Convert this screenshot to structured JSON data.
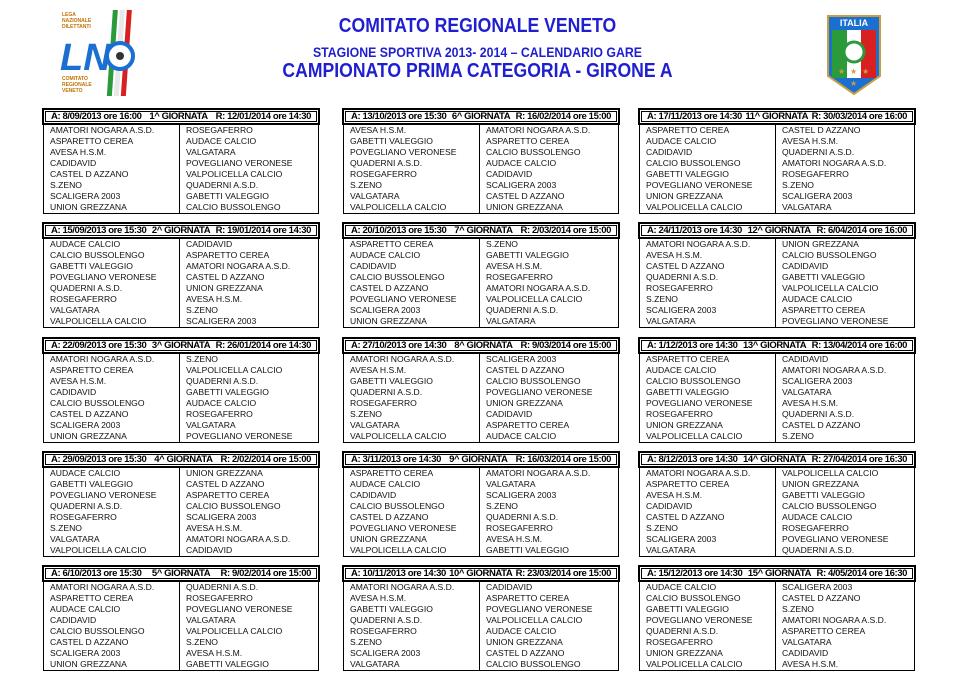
{
  "header": {
    "title": "COMITATO REGIONALE VENETO",
    "subtitle": "STAGIONE SPORTIVA   2013- 2014 – CALENDARIO GARE",
    "championship": "CAMPIONATO PRIMA CATEGORIA  -  GIRONE  A",
    "left_logo_text": "LND - LEGA NAZIONALE DILETTANTI - COMITATO REGIONALE VENETO",
    "right_logo_text": "ITALIA FIGC",
    "accent_color": "#1f1fd0"
  },
  "rounds": [
    {
      "andata": "A: 8/09/2013 ore 16:00",
      "label": "1^ GIORNATA",
      "ritorno": "R: 12/01/2014 ore 14:30",
      "home": [
        "AMATORI NOGARA A.S.D.",
        "ASPARETTO CEREA",
        "AVESA H.S.M.",
        "CADIDAVID",
        "CASTEL D AZZANO",
        "S.ZENO",
        "SCALIGERA 2003",
        "UNION GREZZANA"
      ],
      "away": [
        "ROSEGAFERRO",
        "AUDACE CALCIO",
        "VALGATARA",
        "POVEGLIANO VERONESE",
        "VALPOLICELLA CALCIO",
        "QUADERNI A.S.D.",
        "GABETTI VALEGGIO",
        "CALCIO BUSSOLENGO"
      ]
    },
    {
      "andata": "A: 15/09/2013 ore 15:30",
      "label": "2^ GIORNATA",
      "ritorno": "R: 19/01/2014 ore 14:30",
      "home": [
        "AUDACE CALCIO",
        "CALCIO BUSSOLENGO",
        "GABETTI VALEGGIO",
        "POVEGLIANO VERONESE",
        "QUADERNI A.S.D.",
        "ROSEGAFERRO",
        "VALGATARA",
        "VALPOLICELLA CALCIO"
      ],
      "away": [
        "CADIDAVID",
        "ASPARETTO CEREA",
        "AMATORI NOGARA A.S.D.",
        "CASTEL D AZZANO",
        "UNION GREZZANA",
        "AVESA H.S.M.",
        "S.ZENO",
        "SCALIGERA 2003"
      ]
    },
    {
      "andata": "A: 22/09/2013 ore 15:30",
      "label": "3^ GIORNATA",
      "ritorno": "R: 26/01/2014 ore 14:30",
      "home": [
        "AMATORI NOGARA A.S.D.",
        "ASPARETTO CEREA",
        "AVESA H.S.M.",
        "CADIDAVID",
        "CALCIO BUSSOLENGO",
        "CASTEL D AZZANO",
        "SCALIGERA 2003",
        "UNION GREZZANA"
      ],
      "away": [
        "S.ZENO",
        "VALPOLICELLA CALCIO",
        "QUADERNI A.S.D.",
        "GABETTI VALEGGIO",
        "AUDACE CALCIO",
        "ROSEGAFERRO",
        "VALGATARA",
        "POVEGLIANO VERONESE"
      ]
    },
    {
      "andata": "A: 29/09/2013 ore 15:30",
      "label": "4^ GIORNATA",
      "ritorno": "R: 2/02/2014 ore 15:00",
      "home": [
        "AUDACE CALCIO",
        "GABETTI VALEGGIO",
        "POVEGLIANO VERONESE",
        "QUADERNI A.S.D.",
        "ROSEGAFERRO",
        "S.ZENO",
        "VALGATARA",
        "VALPOLICELLA CALCIO"
      ],
      "away": [
        "UNION GREZZANA",
        "CASTEL D AZZANO",
        "ASPARETTO CEREA",
        "CALCIO BUSSOLENGO",
        "SCALIGERA 2003",
        "AVESA H.S.M.",
        "AMATORI NOGARA A.S.D.",
        "CADIDAVID"
      ]
    },
    {
      "andata": "A: 6/10/2013 ore 15:30",
      "label": "5^ GIORNATA",
      "ritorno": "R: 9/02/2014 ore 15:00",
      "home": [
        "AMATORI NOGARA A.S.D.",
        "ASPARETTO CEREA",
        "AUDACE CALCIO",
        "CADIDAVID",
        "CALCIO BUSSOLENGO",
        "CASTEL D AZZANO",
        "SCALIGERA 2003",
        "UNION GREZZANA"
      ],
      "away": [
        "QUADERNI A.S.D.",
        "ROSEGAFERRO",
        "POVEGLIANO VERONESE",
        "VALGATARA",
        "VALPOLICELLA CALCIO",
        "S.ZENO",
        "AVESA H.S.M.",
        "GABETTI VALEGGIO"
      ]
    },
    {
      "andata": "A: 13/10/2013 ore 15:30",
      "label": "6^ GIORNATA",
      "ritorno": "R: 16/02/2014 ore 15:00",
      "home": [
        "AVESA H.S.M.",
        "GABETTI VALEGGIO",
        "POVEGLIANO VERONESE",
        "QUADERNI A.S.D.",
        "ROSEGAFERRO",
        "S.ZENO",
        "VALGATARA",
        "VALPOLICELLA CALCIO"
      ],
      "away": [
        "AMATORI NOGARA A.S.D.",
        "ASPARETTO CEREA",
        "CALCIO BUSSOLENGO",
        "AUDACE CALCIO",
        "CADIDAVID",
        "SCALIGERA 2003",
        "CASTEL D AZZANO",
        "UNION GREZZANA"
      ]
    },
    {
      "andata": "A: 20/10/2013 ore 15:30",
      "label": "7^ GIORNATA",
      "ritorno": "R: 2/03/2014 ore 15:00",
      "home": [
        "ASPARETTO CEREA",
        "AUDACE CALCIO",
        "CADIDAVID",
        "CALCIO BUSSOLENGO",
        "CASTEL D AZZANO",
        "POVEGLIANO VERONESE",
        "SCALIGERA 2003",
        "UNION GREZZANA"
      ],
      "away": [
        "S.ZENO",
        "GABETTI VALEGGIO",
        "AVESA H.S.M.",
        "ROSEGAFERRO",
        "AMATORI NOGARA A.S.D.",
        "VALPOLICELLA CALCIO",
        "QUADERNI A.S.D.",
        "VALGATARA"
      ]
    },
    {
      "andata": "A: 27/10/2013 ore 14:30",
      "label": "8^ GIORNATA",
      "ritorno": "R: 9/03/2014 ore 15:00",
      "home": [
        "AMATORI NOGARA A.S.D.",
        "AVESA H.S.M.",
        "GABETTI VALEGGIO",
        "QUADERNI A.S.D.",
        "ROSEGAFERRO",
        "S.ZENO",
        "VALGATARA",
        "VALPOLICELLA CALCIO"
      ],
      "away": [
        "SCALIGERA 2003",
        "CASTEL D AZZANO",
        "CALCIO BUSSOLENGO",
        "POVEGLIANO VERONESE",
        "UNION GREZZANA",
        "CADIDAVID",
        "ASPARETTO CEREA",
        "AUDACE CALCIO"
      ]
    },
    {
      "andata": "A: 3/11/2013 ore 14:30",
      "label": "9^ GIORNATA",
      "ritorno": "R: 16/03/2014 ore 15:00",
      "home": [
        "ASPARETTO CEREA",
        "AUDACE CALCIO",
        "CADIDAVID",
        "CALCIO BUSSOLENGO",
        "CASTEL D AZZANO",
        "POVEGLIANO VERONESE",
        "UNION GREZZANA",
        "VALPOLICELLA CALCIO"
      ],
      "away": [
        "AMATORI NOGARA A.S.D.",
        "VALGATARA",
        "SCALIGERA 2003",
        "S.ZENO",
        "QUADERNI A.S.D.",
        "ROSEGAFERRO",
        "AVESA H.S.M.",
        "GABETTI VALEGGIO"
      ]
    },
    {
      "andata": "A: 10/11/2013 ore 14:30",
      "label": "10^ GIORNATA",
      "ritorno": "R: 23/03/2014 ore 15:00",
      "home": [
        "AMATORI NOGARA A.S.D.",
        "AVESA H.S.M.",
        "GABETTI VALEGGIO",
        "QUADERNI A.S.D.",
        "ROSEGAFERRO",
        "S.ZENO",
        "SCALIGERA 2003",
        "VALGATARA"
      ],
      "away": [
        "CADIDAVID",
        "ASPARETTO CEREA",
        "POVEGLIANO VERONESE",
        "VALPOLICELLA CALCIO",
        "AUDACE CALCIO",
        "UNION GREZZANA",
        "CASTEL D AZZANO",
        "CALCIO BUSSOLENGO"
      ]
    },
    {
      "andata": "A: 17/11/2013 ore 14:30",
      "label": "11^ GIORNATA",
      "ritorno": "R: 30/03/2014 ore 16:00",
      "home": [
        "ASPARETTO CEREA",
        "AUDACE CALCIO",
        "CADIDAVID",
        "CALCIO BUSSOLENGO",
        "GABETTI VALEGGIO",
        "POVEGLIANO VERONESE",
        "UNION GREZZANA",
        "VALPOLICELLA CALCIO"
      ],
      "away": [
        "CASTEL D AZZANO",
        "AVESA H.S.M.",
        "QUADERNI A.S.D.",
        "AMATORI NOGARA A.S.D.",
        "ROSEGAFERRO",
        "S.ZENO",
        "SCALIGERA 2003",
        "VALGATARA"
      ]
    },
    {
      "andata": "A: 24/11/2013 ore 14:30",
      "label": "12^ GIORNATA",
      "ritorno": "R: 6/04/2014 ore 16:00",
      "home": [
        "AMATORI NOGARA A.S.D.",
        "AVESA H.S.M.",
        "CASTEL D AZZANO",
        "QUADERNI A.S.D.",
        "ROSEGAFERRO",
        "S.ZENO",
        "SCALIGERA 2003",
        "VALGATARA"
      ],
      "away": [
        "UNION GREZZANA",
        "CALCIO BUSSOLENGO",
        "CADIDAVID",
        "GABETTI VALEGGIO",
        "VALPOLICELLA CALCIO",
        "AUDACE CALCIO",
        "ASPARETTO CEREA",
        "POVEGLIANO VERONESE"
      ]
    },
    {
      "andata": "A: 1/12/2013 ore 14:30",
      "label": "13^ GIORNATA",
      "ritorno": "R: 13/04/2014 ore 16:00",
      "home": [
        "ASPARETTO CEREA",
        "AUDACE CALCIO",
        "CALCIO BUSSOLENGO",
        "GABETTI VALEGGIO",
        "POVEGLIANO VERONESE",
        "ROSEGAFERRO",
        "UNION GREZZANA",
        "VALPOLICELLA CALCIO"
      ],
      "away": [
        "CADIDAVID",
        "AMATORI NOGARA A.S.D.",
        "SCALIGERA 2003",
        "VALGATARA",
        "AVESA H.S.M.",
        "QUADERNI A.S.D.",
        "CASTEL D AZZANO",
        "S.ZENO"
      ]
    },
    {
      "andata": "A: 8/12/2013 ore 14:30",
      "label": "14^ GIORNATA",
      "ritorno": "R: 27/04/2014 ore 16:30",
      "home": [
        "AMATORI NOGARA A.S.D.",
        "ASPARETTO CEREA",
        "AVESA H.S.M.",
        "CADIDAVID",
        "CASTEL D AZZANO",
        "S.ZENO",
        "SCALIGERA 2003",
        "VALGATARA"
      ],
      "away": [
        "VALPOLICELLA CALCIO",
        "UNION GREZZANA",
        "GABETTI VALEGGIO",
        "CALCIO BUSSOLENGO",
        "AUDACE CALCIO",
        "ROSEGAFERRO",
        "POVEGLIANO VERONESE",
        "QUADERNI A.S.D."
      ]
    },
    {
      "andata": "A: 15/12/2013 ore 14:30",
      "label": "15^ GIORNATA",
      "ritorno": "R: 4/05/2014 ore 16:30",
      "home": [
        "AUDACE CALCIO",
        "CALCIO BUSSOLENGO",
        "GABETTI VALEGGIO",
        "POVEGLIANO VERONESE",
        "QUADERNI A.S.D.",
        "ROSEGAFERRO",
        "UNION GREZZANA",
        "VALPOLICELLA CALCIO"
      ],
      "away": [
        "SCALIGERA 2003",
        "CASTEL D AZZANO",
        "S.ZENO",
        "AMATORI NOGARA A.S.D.",
        "ASPARETTO CEREA",
        "VALGATARA",
        "CADIDAVID",
        "AVESA H.S.M."
      ]
    }
  ]
}
